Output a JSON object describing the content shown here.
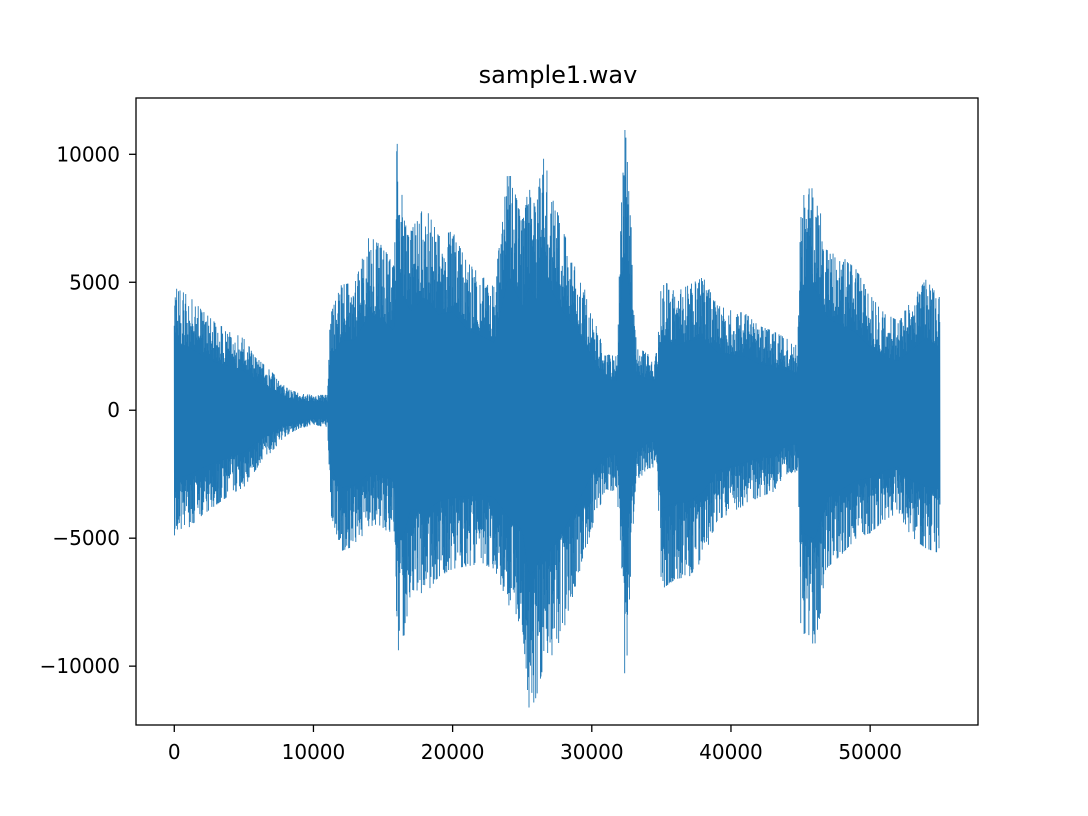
{
  "chart_data": {
    "type": "line",
    "title": "sample1.wav",
    "xlabel": "",
    "ylabel": "",
    "xlim": [
      -2750,
      57750
    ],
    "ylim": [
      -12300,
      12200
    ],
    "x_ticks": [
      0,
      10000,
      20000,
      30000,
      40000,
      50000
    ],
    "x_tick_labels": [
      "0",
      "10000",
      "20000",
      "30000",
      "40000",
      "50000"
    ],
    "y_ticks": [
      -10000,
      -5000,
      0,
      5000,
      10000
    ],
    "y_tick_labels": [
      "−10000",
      "−5000",
      "0",
      "5000",
      "10000"
    ],
    "grid": false,
    "legend": "none",
    "color": "#1f77b4",
    "series": [
      {
        "x_start": 0,
        "x_end": 55000,
        "envelope_note": "waveform amplitude envelope (sample index, positive peak, negative peak)",
        "envelope": [
          [
            0,
            4800,
            -4900
          ],
          [
            1000,
            4500,
            -4600
          ],
          [
            2000,
            3900,
            -4100
          ],
          [
            3000,
            3400,
            -3700
          ],
          [
            4000,
            3100,
            -3300
          ],
          [
            5000,
            2800,
            -3000
          ],
          [
            6000,
            2000,
            -2200
          ],
          [
            7000,
            1500,
            -1600
          ],
          [
            8000,
            900,
            -1000
          ],
          [
            9000,
            650,
            -700
          ],
          [
            10000,
            600,
            -600
          ],
          [
            11000,
            600,
            -650
          ],
          [
            11200,
            3700,
            -4000
          ],
          [
            12000,
            4900,
            -5500
          ],
          [
            13000,
            5000,
            -5300
          ],
          [
            14000,
            6800,
            -4500
          ],
          [
            15000,
            6400,
            -4600
          ],
          [
            15800,
            5600,
            -5000
          ],
          [
            16000,
            10500,
            -9500
          ],
          [
            16500,
            8000,
            -8800
          ],
          [
            17000,
            7000,
            -7000
          ],
          [
            18000,
            8000,
            -7200
          ],
          [
            19000,
            6800,
            -6500
          ],
          [
            20000,
            7000,
            -6200
          ],
          [
            21000,
            5800,
            -6100
          ],
          [
            22000,
            5300,
            -6000
          ],
          [
            23000,
            4800,
            -6200
          ],
          [
            24000,
            9500,
            -7600
          ],
          [
            25000,
            7400,
            -8500
          ],
          [
            25500,
            8800,
            -11800
          ],
          [
            26000,
            7800,
            -11200
          ],
          [
            26500,
            10200,
            -10000
          ],
          [
            27000,
            8700,
            -10000
          ],
          [
            28000,
            6900,
            -8500
          ],
          [
            29000,
            5600,
            -6500
          ],
          [
            30000,
            3800,
            -4600
          ],
          [
            31000,
            2200,
            -3100
          ],
          [
            31800,
            2100,
            -3200
          ],
          [
            32200,
            9500,
            -8000
          ],
          [
            32400,
            11100,
            -11100
          ],
          [
            32800,
            7500,
            -6000
          ],
          [
            33200,
            2500,
            -2900
          ],
          [
            34000,
            2200,
            -2300
          ],
          [
            34600,
            2100,
            -2200
          ],
          [
            35000,
            5200,
            -7000
          ],
          [
            36000,
            4600,
            -6600
          ],
          [
            37000,
            4900,
            -6500
          ],
          [
            38000,
            5200,
            -5800
          ],
          [
            39000,
            4100,
            -4300
          ],
          [
            40000,
            3900,
            -4000
          ],
          [
            41000,
            3800,
            -3700
          ],
          [
            42000,
            3300,
            -3400
          ],
          [
            43000,
            3100,
            -3200
          ],
          [
            44000,
            2800,
            -2500
          ],
          [
            44800,
            2500,
            -2400
          ],
          [
            45000,
            8600,
            -8600
          ],
          [
            46000,
            8700,
            -9200
          ],
          [
            47000,
            6500,
            -6100
          ],
          [
            48000,
            6000,
            -5600
          ],
          [
            49000,
            5500,
            -5000
          ],
          [
            50000,
            4500,
            -4800
          ],
          [
            51000,
            3800,
            -4300
          ],
          [
            52000,
            3500,
            -4000
          ],
          [
            53000,
            4300,
            -5000
          ],
          [
            54000,
            5100,
            -5400
          ],
          [
            55000,
            4400,
            -5600
          ]
        ]
      }
    ]
  }
}
